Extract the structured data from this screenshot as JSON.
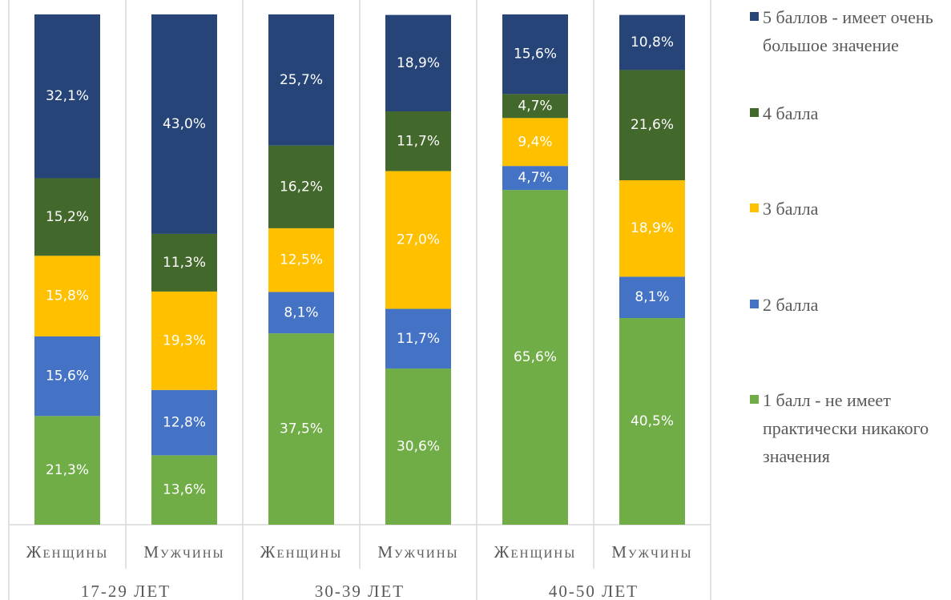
{
  "chart_data": {
    "type": "stacked_bar",
    "categories": [
      "Женщины",
      "Мужчины",
      "Женщины",
      "Мужчины",
      "Женщины",
      "Мужчины"
    ],
    "groups": [
      "17-29 ЛЕТ",
      "30-39 ЛЕТ",
      "40-50 ЛЕТ"
    ],
    "ylim": [
      0,
      100
    ],
    "series": [
      {
        "name": "1 балл - не имеет практически никакого значения",
        "color": "#70ad47",
        "values": [
          21.3,
          13.6,
          37.5,
          30.6,
          65.6,
          40.5
        ],
        "value_labels": [
          "21,3%",
          "13,6%",
          "37,5%",
          "30,6%",
          "65,6%",
          "40,5%"
        ]
      },
      {
        "name": "2 балла",
        "color": "#4472c4",
        "values": [
          15.6,
          12.8,
          8.1,
          11.7,
          4.7,
          8.1
        ],
        "value_labels": [
          "15,6%",
          "12,8%",
          "8,1%",
          "11,7%",
          "4,7%",
          "8,1%"
        ]
      },
      {
        "name": "3 балла",
        "color": "#ffc000",
        "values": [
          15.8,
          19.3,
          12.5,
          27.0,
          9.4,
          18.9
        ],
        "value_labels": [
          "15,8%",
          "19,3%",
          "12,5%",
          "27,0%",
          "9,4%",
          "18,9%"
        ]
      },
      {
        "name": "4 балла",
        "color": "#43682b",
        "values": [
          15.2,
          11.3,
          16.2,
          11.7,
          4.7,
          21.6
        ],
        "value_labels": [
          "15,2%",
          "11,3%",
          "16,2%",
          "11,7%",
          "4,7%",
          "21,6%"
        ]
      },
      {
        "name": "5 баллов - имеет очень большое значение",
        "color": "#264478",
        "values": [
          32.1,
          43.0,
          25.7,
          18.9,
          15.6,
          10.8
        ],
        "value_labels": [
          "32,1%",
          "43,0%",
          "25,7%",
          "18,9%",
          "15,6%",
          "10,8%"
        ]
      }
    ]
  }
}
